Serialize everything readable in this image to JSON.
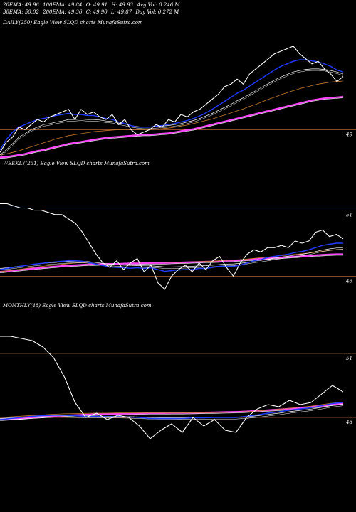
{
  "header": {
    "row1": [
      "20EMA: 49.96",
      "100EMA: 49.84",
      "O: 49.91",
      "H: 49.93",
      "Avg Vol: 0.246  M"
    ],
    "row2": [
      "30EMA: 50.02",
      "200EMA: 49.36",
      "C: 49.90",
      "L: 49.87",
      "Day Vol: 0.272  M"
    ]
  },
  "colors": {
    "background": "#000000",
    "price": "#ffffff",
    "ema_fast": "#1f3bff",
    "ema_mid": "#ffffff",
    "ema_slow": "#c87a2a",
    "ema_long": "#ff44ff",
    "gridline": "#b06030"
  },
  "chart_data": [
    {
      "type": "line",
      "title": "DAILY(250) Eagle  View  SLQD charts MunafaSutra.com",
      "ytick_labels": [
        "49"
      ],
      "ytick_values": [
        49
      ],
      "ylim": [
        48.4,
        51.0
      ],
      "series": [
        {
          "role": "price",
          "values": [
            48.55,
            48.75,
            48.85,
            49.05,
            49.0,
            49.1,
            49.2,
            49.15,
            49.25,
            49.3,
            49.35,
            49.4,
            49.2,
            49.4,
            49.3,
            49.35,
            49.25,
            49.2,
            49.3,
            49.1,
            49.2,
            49.0,
            48.9,
            48.95,
            49.0,
            49.1,
            49.05,
            49.2,
            49.15,
            49.3,
            49.25,
            49.35,
            49.4,
            49.5,
            49.6,
            49.7,
            49.85,
            49.9,
            50.0,
            49.9,
            50.1,
            50.2,
            50.3,
            50.4,
            50.5,
            50.55,
            50.6,
            50.65,
            50.5,
            50.4,
            50.3,
            50.35,
            50.2,
            50.1,
            49.95,
            50.05
          ]
        },
        {
          "role": "ema_fast",
          "values": [
            48.6,
            48.8,
            48.95,
            49.05,
            49.1,
            49.15,
            49.2,
            49.22,
            49.25,
            49.28,
            49.3,
            49.32,
            49.3,
            49.3,
            49.28,
            49.28,
            49.25,
            49.22,
            49.2,
            49.15,
            49.12,
            49.08,
            49.05,
            49.05,
            49.05,
            49.07,
            49.08,
            49.1,
            49.12,
            49.15,
            49.18,
            49.22,
            49.27,
            49.33,
            49.4,
            49.48,
            49.56,
            49.64,
            49.72,
            49.78,
            49.86,
            49.94,
            50.02,
            50.1,
            50.18,
            50.25,
            50.3,
            50.35,
            50.38,
            50.38,
            50.36,
            50.34,
            50.3,
            50.25,
            50.18,
            50.14
          ]
        },
        {
          "role": "ema_mid",
          "values": [
            48.5,
            48.6,
            48.72,
            48.85,
            48.92,
            49.0,
            49.05,
            49.1,
            49.12,
            49.15,
            49.17,
            49.2,
            49.2,
            49.21,
            49.2,
            49.2,
            49.19,
            49.17,
            49.16,
            49.13,
            49.11,
            49.08,
            49.06,
            49.05,
            49.05,
            49.06,
            49.07,
            49.08,
            49.1,
            49.12,
            49.15,
            49.18,
            49.22,
            49.27,
            49.32,
            49.38,
            49.44,
            49.5,
            49.57,
            49.63,
            49.7,
            49.77,
            49.84,
            49.91,
            49.98,
            50.04,
            50.09,
            50.14,
            50.17,
            50.19,
            50.2,
            50.2,
            50.19,
            50.17,
            50.14,
            50.1
          ]
        },
        {
          "role": "ema_slow",
          "values": [
            48.5,
            48.52,
            48.55,
            48.58,
            48.62,
            48.66,
            48.7,
            48.74,
            48.78,
            48.82,
            48.85,
            48.88,
            48.9,
            48.92,
            48.94,
            48.96,
            48.97,
            48.98,
            48.99,
            49.0,
            49.0,
            49.0,
            49.0,
            49.0,
            49.0,
            49.01,
            49.02,
            49.03,
            49.05,
            49.07,
            49.09,
            49.12,
            49.15,
            49.18,
            49.21,
            49.25,
            49.29,
            49.33,
            49.37,
            49.41,
            49.46,
            49.5,
            49.55,
            49.6,
            49.64,
            49.69,
            49.73,
            49.77,
            49.81,
            49.84,
            49.87,
            49.9,
            49.92,
            49.94,
            49.95,
            49.96
          ]
        },
        {
          "role": "ema_long",
          "values": [
            48.45,
            48.46,
            48.48,
            48.5,
            48.52,
            48.55,
            48.58,
            48.6,
            48.63,
            48.66,
            48.69,
            48.72,
            48.74,
            48.76,
            48.78,
            48.8,
            48.82,
            48.84,
            48.85,
            48.86,
            48.87,
            48.88,
            48.89,
            48.9,
            48.9,
            48.91,
            48.92,
            48.93,
            48.95,
            48.97,
            48.99,
            49.01,
            49.04,
            49.07,
            49.1,
            49.13,
            49.16,
            49.19,
            49.22,
            49.25,
            49.28,
            49.31,
            49.34,
            49.37,
            49.4,
            49.43,
            49.46,
            49.49,
            49.52,
            49.55,
            49.58,
            49.6,
            49.62,
            49.63,
            49.64,
            49.65
          ]
        }
      ]
    },
    {
      "type": "line",
      "title": "WEEKLY(251) Eagle  View  SLQD charts MunafaSutra.com",
      "ytick_labels": [
        "51",
        "48"
      ],
      "ytick_values": [
        51,
        48
      ],
      "ylim": [
        47.3,
        52.8
      ],
      "series": [
        {
          "role": "price",
          "values": [
            51.3,
            51.3,
            51.2,
            51.1,
            51.1,
            51.0,
            51.0,
            50.9,
            50.8,
            50.8,
            50.6,
            50.4,
            50.0,
            49.5,
            49.0,
            48.6,
            48.4,
            48.7,
            48.3,
            48.6,
            48.8,
            48.2,
            48.5,
            47.7,
            47.4,
            48.0,
            48.3,
            48.5,
            48.2,
            48.6,
            48.3,
            48.7,
            48.9,
            48.4,
            48.0,
            48.6,
            49.0,
            49.2,
            49.1,
            49.3,
            49.3,
            49.4,
            49.3,
            49.6,
            49.5,
            49.6,
            50.0,
            50.1,
            49.8,
            49.9,
            49.7
          ]
        },
        {
          "role": "ema_fast",
          "values": [
            48.3,
            48.35,
            48.4,
            48.45,
            48.5,
            48.55,
            48.58,
            48.62,
            48.65,
            48.68,
            48.7,
            48.7,
            48.68,
            48.62,
            48.55,
            48.48,
            48.42,
            48.4,
            48.38,
            48.36,
            48.38,
            48.35,
            48.38,
            48.3,
            48.22,
            48.25,
            48.28,
            48.3,
            48.3,
            48.35,
            48.35,
            48.4,
            48.45,
            48.45,
            48.45,
            48.5,
            48.6,
            48.7,
            48.75,
            48.85,
            48.9,
            48.95,
            49.0,
            49.08,
            49.12,
            49.2,
            49.3,
            49.4,
            49.45,
            49.5,
            49.5
          ]
        },
        {
          "role": "ema_mid",
          "values": [
            48.35,
            48.38,
            48.42,
            48.46,
            48.5,
            48.54,
            48.57,
            48.6,
            48.62,
            48.65,
            48.67,
            48.68,
            48.68,
            48.66,
            48.62,
            48.58,
            48.55,
            48.52,
            48.5,
            48.49,
            48.48,
            48.47,
            48.47,
            48.45,
            48.42,
            48.42,
            48.43,
            48.44,
            48.45,
            48.47,
            48.48,
            48.5,
            48.53,
            48.55,
            48.56,
            48.58,
            48.63,
            48.68,
            48.72,
            48.77,
            48.82,
            48.87,
            48.91,
            48.96,
            49.0,
            49.05,
            49.12,
            49.19,
            49.24,
            49.28,
            49.3
          ]
        },
        {
          "role": "ema_slow",
          "values": [
            48.2,
            48.24,
            48.28,
            48.32,
            48.36,
            48.4,
            48.44,
            48.48,
            48.51,
            48.54,
            48.57,
            48.6,
            48.62,
            48.63,
            48.64,
            48.64,
            48.64,
            48.64,
            48.64,
            48.64,
            48.64,
            48.64,
            48.64,
            48.64,
            48.63,
            48.63,
            48.63,
            48.64,
            48.65,
            48.66,
            48.67,
            48.68,
            48.7,
            48.72,
            48.73,
            48.75,
            48.78,
            48.81,
            48.84,
            48.87,
            48.9,
            48.93,
            48.96,
            48.99,
            49.02,
            49.05,
            49.09,
            49.13,
            49.17,
            49.2,
            49.22
          ]
        },
        {
          "role": "ema_long",
          "values": [
            48.2,
            48.23,
            48.26,
            48.29,
            48.32,
            48.35,
            48.38,
            48.41,
            48.44,
            48.46,
            48.48,
            48.5,
            48.52,
            48.53,
            48.54,
            48.55,
            48.56,
            48.56,
            48.57,
            48.58,
            48.58,
            48.59,
            48.6,
            48.6,
            48.6,
            48.61,
            48.62,
            48.63,
            48.64,
            48.65,
            48.66,
            48.67,
            48.68,
            48.7,
            48.71,
            48.73,
            48.75,
            48.77,
            48.79,
            48.81,
            48.83,
            48.85,
            48.87,
            48.89,
            48.91,
            48.93,
            48.95,
            48.97,
            48.99,
            49.0,
            49.0
          ]
        }
      ]
    },
    {
      "type": "line",
      "title": "MONTHLY(48) Eagle  View  SLQD charts MunafaSutra.com",
      "ytick_labels": [
        "51",
        "48"
      ],
      "ytick_values": [
        51,
        48
      ],
      "ylim": [
        46.9,
        52.9
      ],
      "series": [
        {
          "role": "price",
          "values": [
            51.8,
            51.8,
            51.7,
            51.6,
            51.3,
            50.8,
            49.9,
            48.7,
            48.0,
            48.2,
            47.9,
            48.1,
            48.0,
            47.6,
            47.0,
            47.4,
            47.7,
            47.3,
            48.0,
            47.6,
            47.9,
            47.4,
            47.3,
            48.0,
            48.4,
            48.6,
            48.5,
            48.8,
            48.6,
            48.7,
            49.1,
            49.5,
            49.2
          ]
        },
        {
          "role": "ema_fast",
          "values": [
            47.9,
            47.95,
            48.0,
            48.05,
            48.08,
            48.1,
            48.1,
            48.08,
            48.05,
            48.05,
            48.03,
            48.03,
            48.02,
            48.0,
            47.95,
            47.95,
            47.95,
            47.95,
            47.98,
            47.98,
            48.0,
            48.0,
            48.0,
            48.05,
            48.12,
            48.2,
            48.26,
            48.34,
            48.4,
            48.45,
            48.55,
            48.65,
            48.7
          ]
        },
        {
          "role": "ema_mid",
          "values": [
            47.95,
            47.98,
            48.0,
            48.03,
            48.06,
            48.08,
            48.08,
            48.07,
            48.06,
            48.06,
            48.05,
            48.05,
            48.04,
            48.02,
            48.0,
            47.99,
            47.99,
            47.98,
            47.99,
            47.99,
            48.0,
            48.0,
            48.0,
            48.03,
            48.08,
            48.14,
            48.2,
            48.27,
            48.33,
            48.39,
            48.47,
            48.56,
            48.62
          ]
        },
        {
          "role": "ema_slow",
          "values": [
            48.0,
            48.03,
            48.06,
            48.09,
            48.12,
            48.15,
            48.17,
            48.18,
            48.19,
            48.2,
            48.2,
            48.21,
            48.21,
            48.21,
            48.21,
            48.21,
            48.21,
            48.21,
            48.22,
            48.22,
            48.23,
            48.24,
            48.25,
            48.27,
            48.3,
            48.34,
            48.38,
            48.43,
            48.48,
            48.53,
            48.6,
            48.67,
            48.72
          ]
        },
        {
          "role": "ema_long",
          "values": [
            47.9,
            47.93,
            47.96,
            48.0,
            48.03,
            48.06,
            48.09,
            48.11,
            48.13,
            48.15,
            48.16,
            48.17,
            48.18,
            48.19,
            48.2,
            48.2,
            48.21,
            48.21,
            48.22,
            48.23,
            48.24,
            48.25,
            48.26,
            48.28,
            48.31,
            48.34,
            48.37,
            48.41,
            48.45,
            48.49,
            48.54,
            48.6,
            48.65
          ]
        }
      ]
    }
  ]
}
